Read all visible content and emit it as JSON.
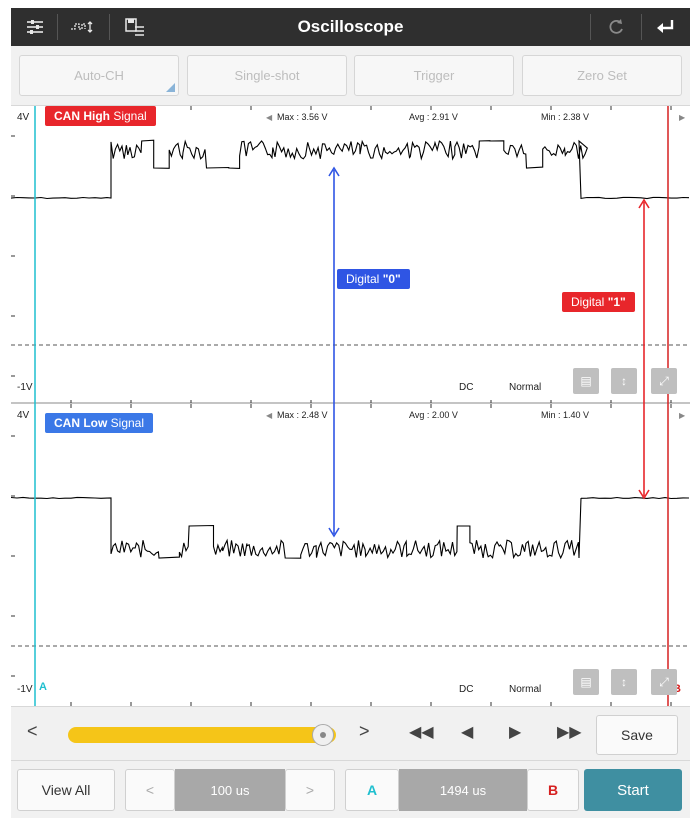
{
  "header": {
    "title": "Oscilloscope",
    "left_icons": [
      "sliders-icon",
      "waveform-icon",
      "save-list-icon"
    ],
    "right_icons": [
      "refresh-icon",
      "back-icon"
    ]
  },
  "toolbar": {
    "buttons": [
      {
        "label": "Auto-CH"
      },
      {
        "label": "Single-shot"
      },
      {
        "label": "Trigger"
      },
      {
        "label": "Zero Set"
      }
    ]
  },
  "panels": [
    {
      "name": "CAN High Signal",
      "name_bold": "CAN High",
      "name_rest": " Signal",
      "tag_color": "#e8262b",
      "y_max_label": "4V",
      "y_min_label": "-1V",
      "max": "Max : 3.56 V",
      "avg": "Avg : 2.91 V",
      "min": "Min : 2.38 V",
      "coupling": "DC",
      "mode": "Normal"
    },
    {
      "name": "CAN Low Signal",
      "name_bold": "CAN Low",
      "name_rest": " Signal",
      "tag_color": "#3b78e7",
      "y_max_label": "4V",
      "y_min_label": "-1V",
      "max": "Max : 2.48 V",
      "avg": "Avg : 2.00 V",
      "min": "Min : 1.40 V",
      "coupling": "DC",
      "mode": "Normal"
    }
  ],
  "annotations": {
    "digital0": {
      "text": "Digital ",
      "quoted": "\"0\"",
      "color": "#2f55e4"
    },
    "digital1": {
      "text": "Digital ",
      "quoted": "\"1\"",
      "color": "#e8262b"
    }
  },
  "cursors": {
    "a_label": "A",
    "b_label": "B",
    "a_color": "#1fbfcf",
    "b_color": "#d62020"
  },
  "controls": {
    "prev_label": "<",
    "next_label": ">",
    "slider_value": 0.95,
    "save_label": "Save",
    "view_all_label": "View All",
    "timebase": "100 us",
    "cursor_a_label": "A",
    "cursor_delta": "1494 us",
    "cursor_b_label": "B",
    "start_label": "Start"
  }
}
